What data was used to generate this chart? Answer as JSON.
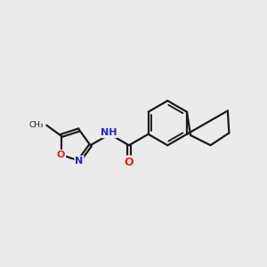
{
  "bg_color": "#ebebeb",
  "bond_color": "#1a1a1a",
  "bond_width": 1.6,
  "N_color": "#2222cc",
  "O_color": "#dd2222",
  "font_size": 8,
  "figsize": [
    3.0,
    3.0
  ],
  "dpi": 100,
  "xlim": [
    0,
    10
  ],
  "ylim": [
    0,
    10
  ]
}
